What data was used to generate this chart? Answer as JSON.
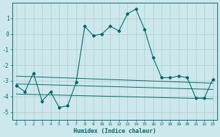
{
  "title": "",
  "xlabel": "Humidex (Indice chaleur)",
  "xlim": [
    -0.5,
    23.5
  ],
  "ylim": [
    -5.5,
    2.0
  ],
  "yticks": [
    1,
    0,
    -1,
    -2,
    -3,
    -4,
    -5
  ],
  "xticks": [
    0,
    1,
    2,
    3,
    4,
    5,
    6,
    7,
    8,
    9,
    10,
    11,
    12,
    13,
    14,
    15,
    16,
    17,
    18,
    19,
    20,
    21,
    22,
    23
  ],
  "background_color": "#cce8ec",
  "grid_color": "#aacccc",
  "line_color": "#006666",
  "main_x": [
    0,
    1,
    2,
    3,
    4,
    5,
    6,
    7,
    8,
    9,
    10,
    11,
    12,
    13,
    14,
    15,
    16,
    17,
    18,
    19,
    20,
    21,
    22,
    23
  ],
  "main_y": [
    -3.3,
    -3.7,
    -2.5,
    -4.3,
    -3.7,
    -4.7,
    -4.6,
    -3.1,
    0.5,
    -0.1,
    -0.0,
    0.5,
    0.2,
    1.3,
    1.6,
    0.3,
    -1.5,
    -2.8,
    -2.8,
    -2.7,
    -2.8,
    -4.1,
    -4.1,
    -2.9
  ],
  "trend1_x": [
    0,
    23
  ],
  "trend1_y": [
    -2.7,
    -3.15
  ],
  "trend2_x": [
    0,
    23
  ],
  "trend2_y": [
    -3.2,
    -3.55
  ],
  "trend3_x": [
    0,
    23
  ],
  "trend3_y": [
    -3.85,
    -4.15
  ]
}
